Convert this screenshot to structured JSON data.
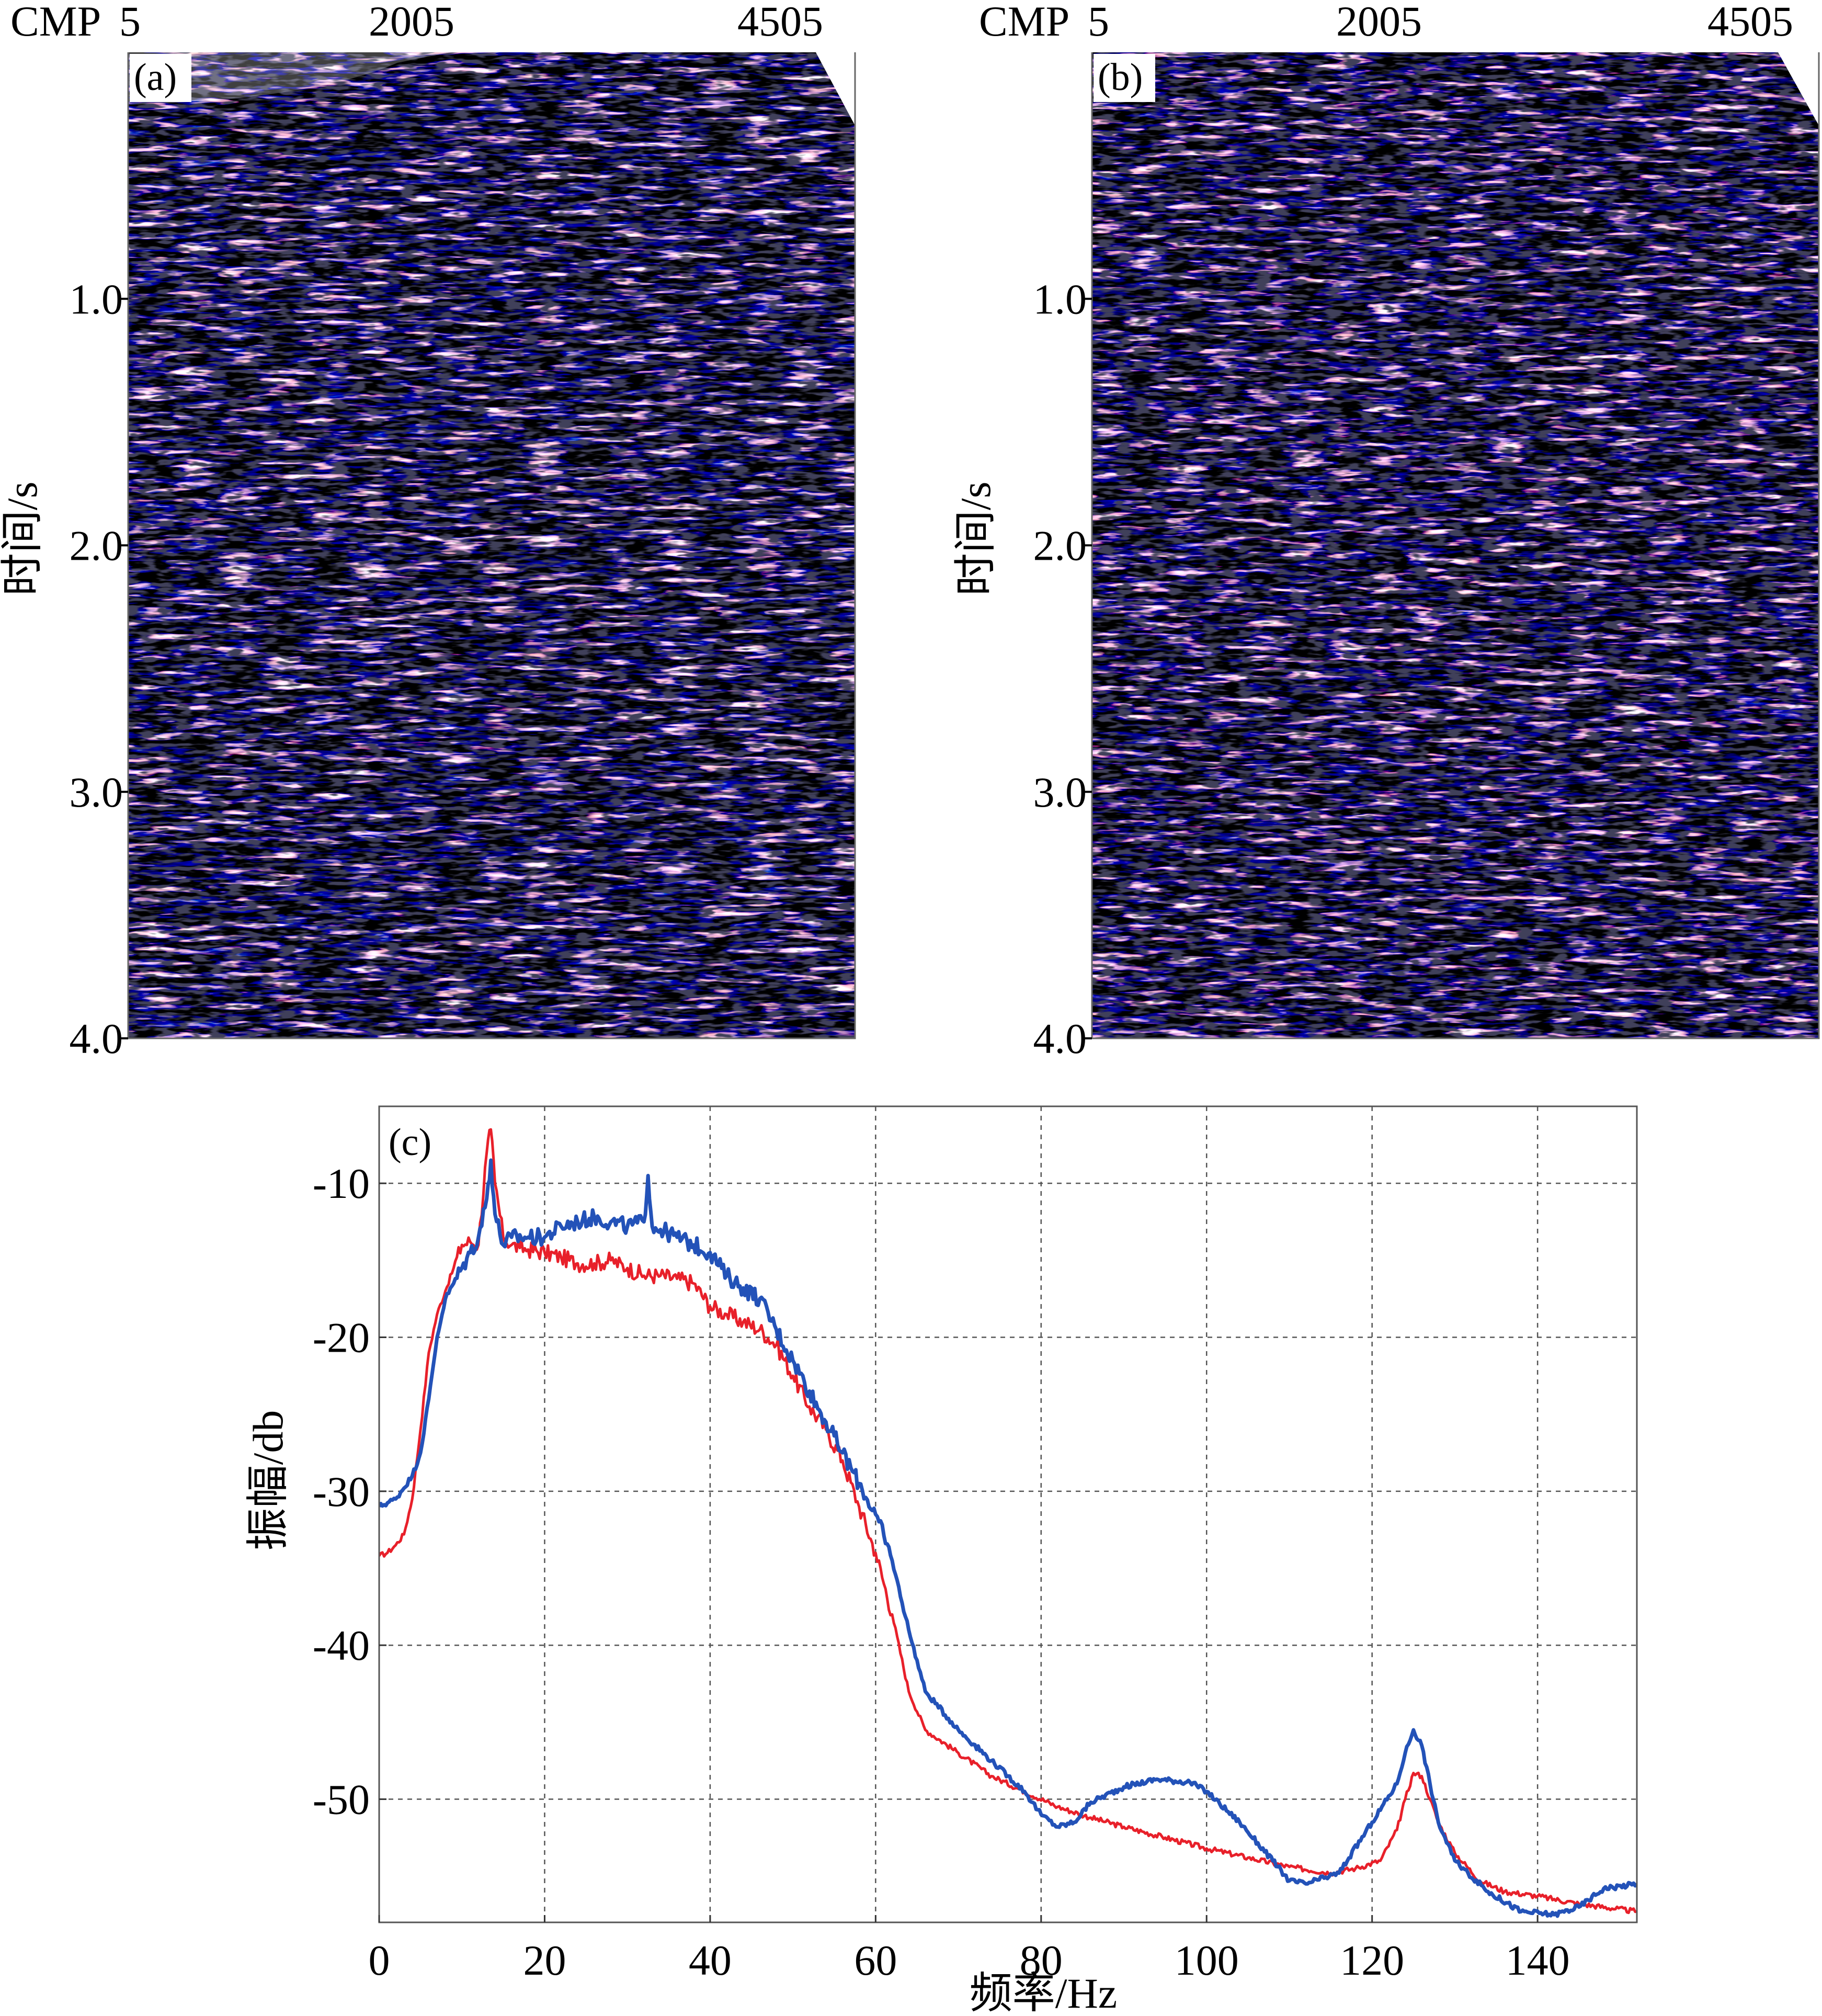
{
  "panel_a": {
    "label": "(a)",
    "cmp_prefix": "CMP",
    "cmp_ticks": [
      "5",
      "2005",
      "4505"
    ],
    "ylabel": "时间/s",
    "time_ticks": [
      {
        "t": 1.0,
        "label": "1.0"
      },
      {
        "t": 2.0,
        "label": "2.0"
      },
      {
        "t": 3.0,
        "label": "3.0"
      },
      {
        "t": 4.0,
        "label": "4.0"
      }
    ]
  },
  "panel_b": {
    "label": "(b)",
    "cmp_prefix": "CMP",
    "cmp_ticks": [
      "5",
      "2005",
      "4505"
    ],
    "ylabel": "时间/s",
    "time_ticks": [
      {
        "t": 1.0,
        "label": "1.0"
      },
      {
        "t": 2.0,
        "label": "2.0"
      },
      {
        "t": 3.0,
        "label": "3.0"
      },
      {
        "t": 4.0,
        "label": "4.0"
      }
    ]
  },
  "chart_data": {
    "type": "line",
    "panel_label": "(c)",
    "xlabel": "频率/Hz",
    "ylabel": "振幅/db",
    "xlim": [
      0,
      152
    ],
    "ylim": [
      -58,
      -5
    ],
    "xticks": [
      0,
      20,
      40,
      60,
      80,
      100,
      120,
      140
    ],
    "yticks": [
      -10,
      -20,
      -30,
      -40,
      -50
    ],
    "grid": true,
    "series": [
      {
        "color": "#e8202a",
        "x": [
          0,
          1,
          2,
          3,
          4,
          5,
          6,
          7,
          8,
          9,
          10,
          11,
          12,
          13,
          13.5,
          14,
          15,
          16,
          17,
          18,
          20,
          22,
          24,
          26,
          28,
          30,
          32,
          34,
          36,
          38,
          40,
          42,
          44,
          46,
          48,
          50,
          52,
          54,
          56,
          58,
          60,
          62,
          64,
          66,
          70,
          74,
          78,
          82,
          86,
          90,
          95,
          100,
          105,
          110,
          115,
          118,
          121,
          123,
          124,
          125,
          126,
          127,
          128,
          130,
          133,
          136,
          140,
          145,
          152
        ],
        "y": [
          -34.2,
          -34,
          -33.5,
          -32.8,
          -30.5,
          -26,
          -21,
          -18.5,
          -17,
          -15.5,
          -14,
          -13.8,
          -14,
          -8,
          -6.5,
          -10,
          -13.5,
          -14,
          -14.2,
          -14.3,
          -14.5,
          -14.8,
          -15.2,
          -15.2,
          -15,
          -15.5,
          -16,
          -16,
          -16.2,
          -16.5,
          -18,
          -18.5,
          -19,
          -19.5,
          -20.5,
          -22.5,
          -24.5,
          -26,
          -28,
          -31,
          -34,
          -38,
          -43,
          -45.5,
          -47,
          -48.5,
          -49.5,
          -50.5,
          -51.2,
          -51.8,
          -52.5,
          -53.2,
          -53.8,
          -54.4,
          -54.8,
          -54.5,
          -54,
          -52,
          -50,
          -48.3,
          -48.5,
          -50,
          -51.5,
          -53.5,
          -55.3,
          -56,
          -56.3,
          -56.8,
          -57.3
        ]
      },
      {
        "color": "#2352b8",
        "x": [
          0,
          2,
          4,
          5,
          6,
          7,
          8,
          9,
          10,
          11,
          12,
          13,
          13.5,
          14,
          15,
          16,
          18,
          20,
          22,
          24,
          26,
          28,
          30,
          32,
          32.5,
          33,
          34,
          36,
          38,
          40,
          42,
          44,
          46,
          48,
          50,
          52,
          54,
          56,
          58,
          60,
          62,
          64,
          66,
          70,
          74,
          78,
          80,
          82,
          84,
          86,
          90,
          94,
          98,
          100,
          104,
          108,
          110,
          112,
          116,
          120,
          123,
          124,
          125,
          126,
          127,
          128,
          130,
          134,
          138,
          142,
          145,
          148,
          152
        ],
        "y": [
          -31,
          -30.5,
          -29,
          -27.5,
          -24,
          -20,
          -17.5,
          -16.5,
          -15.5,
          -14.5,
          -13.5,
          -11,
          -8.5,
          -12,
          -14,
          -13.5,
          -13.5,
          -13.5,
          -12.8,
          -12.5,
          -12.2,
          -12.5,
          -12.8,
          -12.5,
          -9.5,
          -12.8,
          -13,
          -13.5,
          -14,
          -14.5,
          -16,
          -16.8,
          -17.5,
          -19.5,
          -21.5,
          -23.5,
          -25.5,
          -27.5,
          -29.5,
          -31.5,
          -34.5,
          -39,
          -43,
          -45.5,
          -47.5,
          -49.5,
          -51,
          -51.8,
          -51.5,
          -50.2,
          -49.2,
          -48.7,
          -48.9,
          -49.5,
          -51.5,
          -54,
          -55.3,
          -55.5,
          -54.8,
          -51.5,
          -49,
          -47,
          -45.5,
          -46.5,
          -49,
          -51.5,
          -54,
          -56,
          -57.3,
          -57.5,
          -57,
          -55.8,
          -55.5
        ]
      }
    ]
  }
}
